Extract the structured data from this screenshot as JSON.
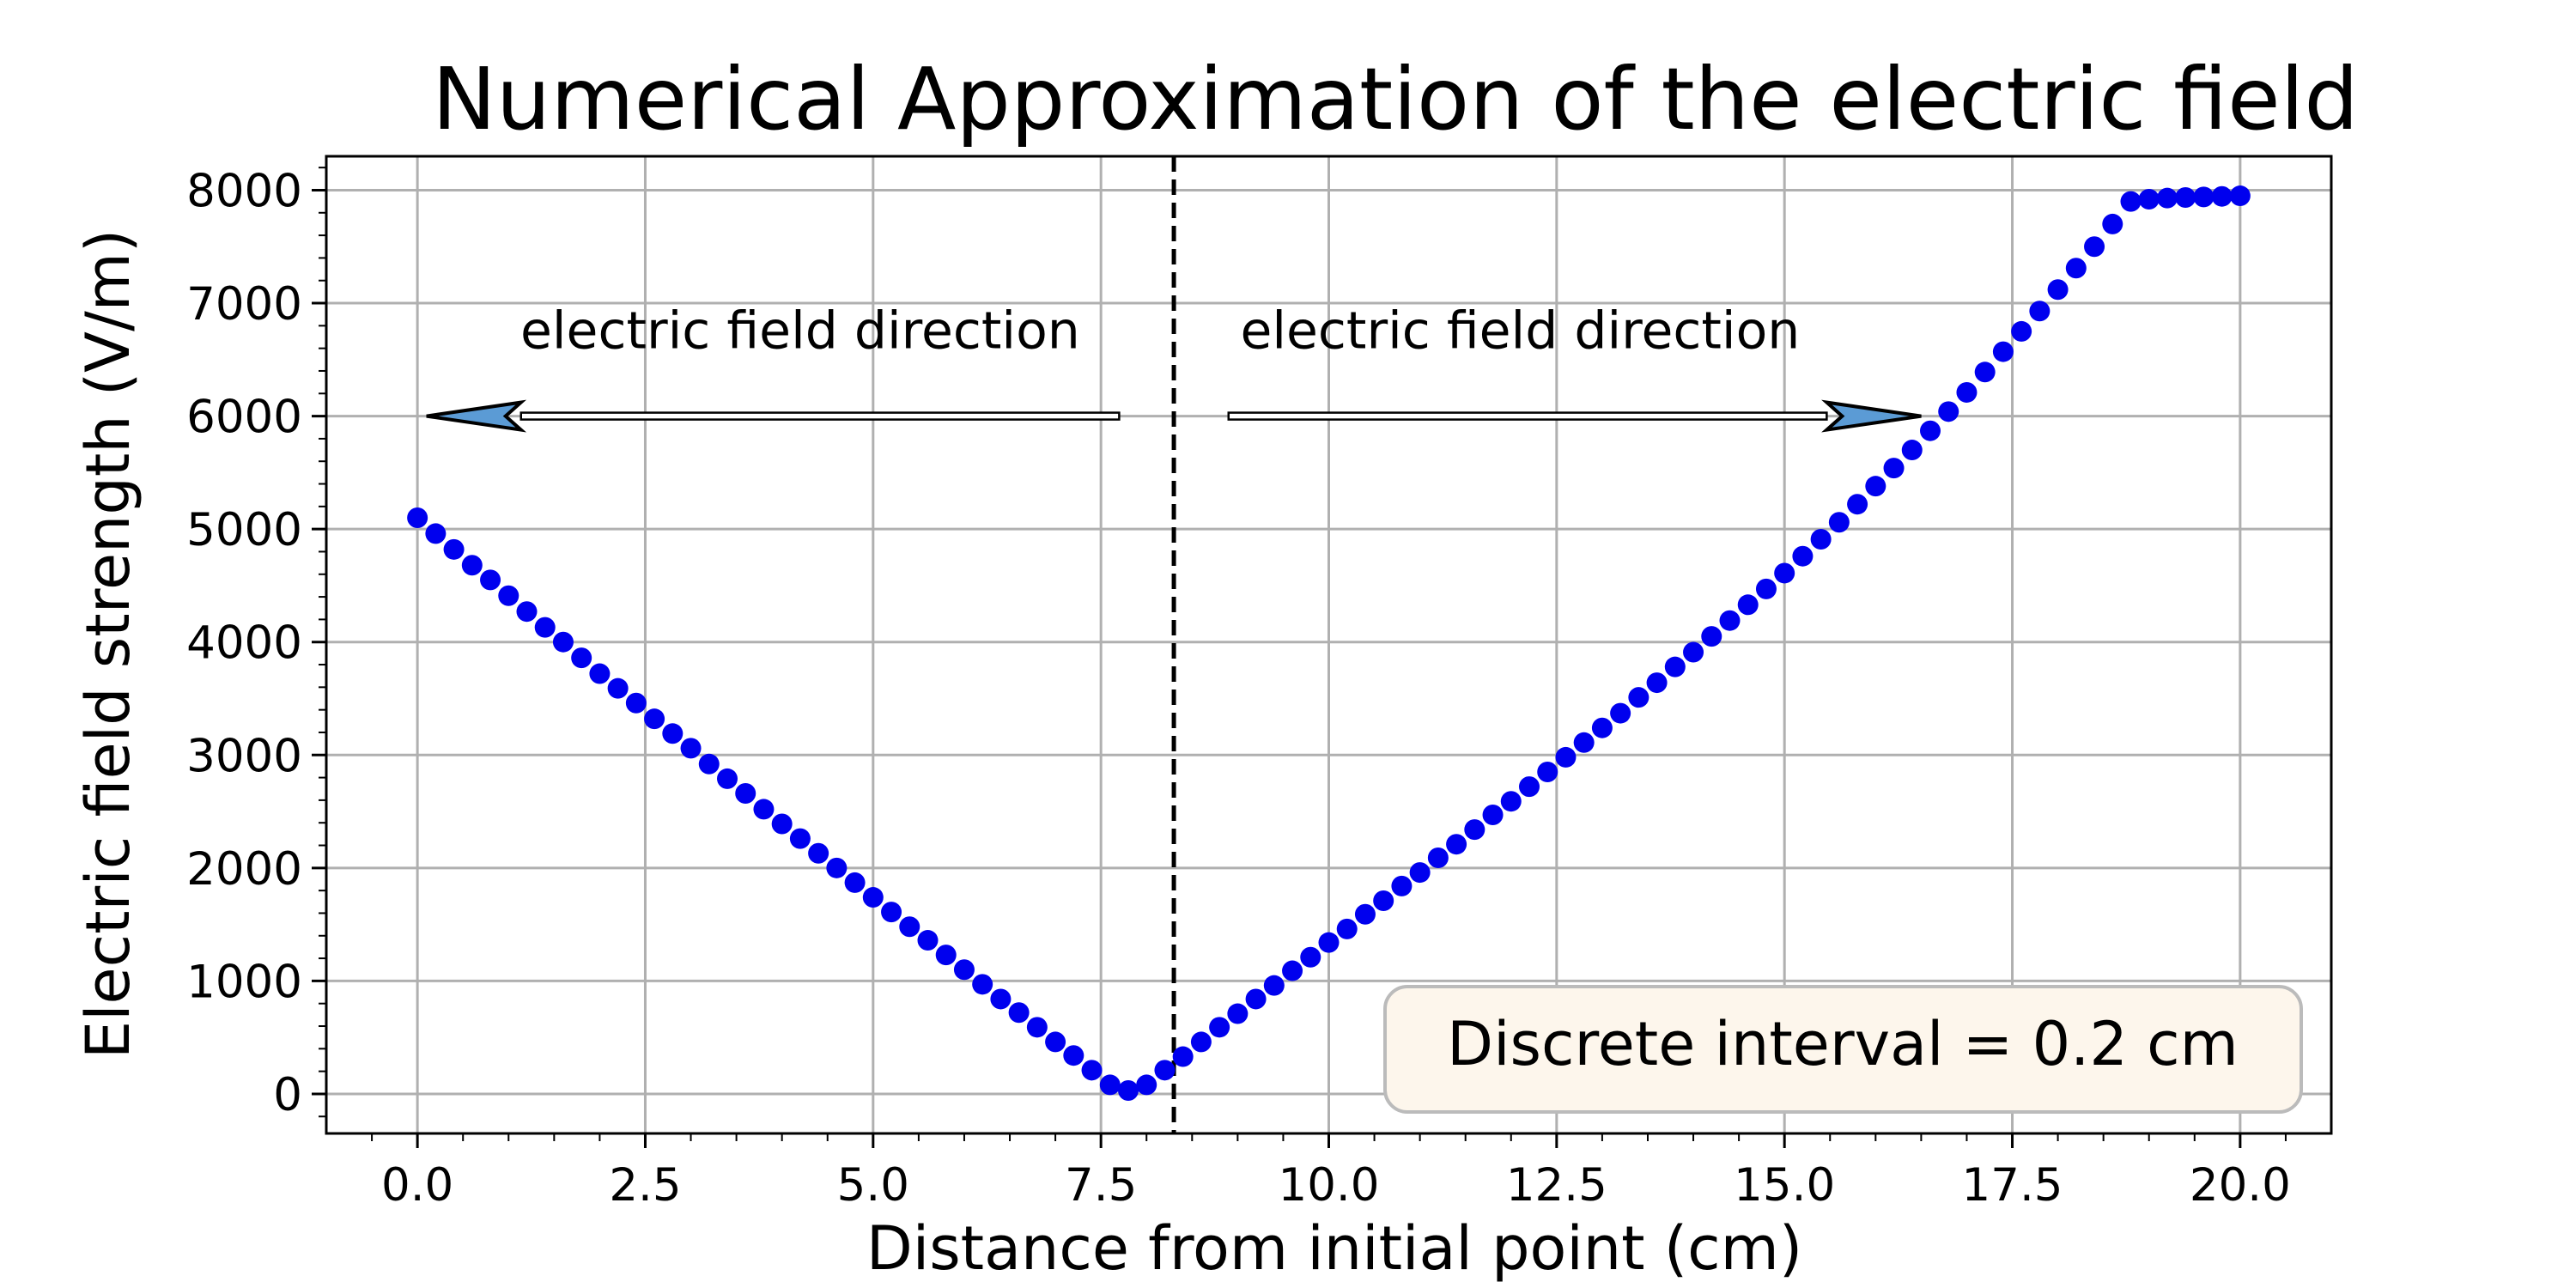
{
  "chart_data": {
    "type": "scatter",
    "title": "Numerical Approximation of the electric field",
    "xlabel": "Distance from initial point (cm)",
    "ylabel": "Electric field strength (V/m)",
    "xlim": [
      -1.0,
      21.0
    ],
    "ylim": [
      -350,
      8300
    ],
    "xticks": [
      0.0,
      2.5,
      5.0,
      7.5,
      10.0,
      12.5,
      15.0,
      17.5,
      20.0
    ],
    "xtick_labels": [
      "0.0",
      "2.5",
      "5.0",
      "7.5",
      "10.0",
      "12.5",
      "15.0",
      "17.5",
      "20.0"
    ],
    "yticks": [
      0,
      1000,
      2000,
      3000,
      4000,
      5000,
      6000,
      7000,
      8000
    ],
    "ytick_labels": [
      "0",
      "1000",
      "2000",
      "3000",
      "4000",
      "5000",
      "6000",
      "7000",
      "8000"
    ],
    "grid": true,
    "series": [
      {
        "marker": "circle",
        "color": "#0000ee",
        "x_start": 0.0,
        "x_step": 0.2,
        "x": [
          0.0,
          0.2,
          0.4,
          0.6,
          0.8,
          1.0,
          1.2,
          1.4,
          1.6,
          1.8,
          2.0,
          2.2,
          2.4,
          2.6,
          2.8,
          3.0,
          3.2,
          3.4,
          3.6,
          3.8,
          4.0,
          4.2,
          4.4,
          4.6,
          4.8,
          5.0,
          5.2,
          5.4,
          5.6,
          5.8,
          6.0,
          6.2,
          6.4,
          6.6,
          6.8,
          7.0,
          7.2,
          7.4,
          7.6,
          7.8,
          8.0,
          8.2,
          8.4,
          8.6,
          8.8,
          9.0,
          9.2,
          9.4,
          9.6,
          9.8,
          10.0,
          10.2,
          10.4,
          10.6,
          10.8,
          11.0,
          11.2,
          11.4,
          11.6,
          11.8,
          12.0,
          12.2,
          12.4,
          12.6,
          12.8,
          13.0,
          13.2,
          13.4,
          13.6,
          13.8,
          14.0,
          14.2,
          14.4,
          14.6,
          14.8,
          15.0,
          15.2,
          15.4,
          15.6,
          15.8,
          16.0,
          16.2,
          16.4,
          16.6,
          16.8,
          17.0,
          17.2,
          17.4,
          17.6,
          17.8,
          18.0,
          18.2,
          18.4,
          18.6,
          18.8,
          19.0,
          19.2,
          19.4,
          19.6,
          19.8,
          20.0
        ],
        "y": [
          5100,
          4960,
          4820,
          4680,
          4550,
          4410,
          4270,
          4130,
          4000,
          3860,
          3720,
          3590,
          3460,
          3320,
          3190,
          3060,
          2920,
          2790,
          2660,
          2520,
          2390,
          2260,
          2130,
          2000,
          1870,
          1740,
          1610,
          1480,
          1360,
          1230,
          1100,
          970,
          840,
          720,
          590,
          460,
          340,
          210,
          80,
          30,
          80,
          210,
          330,
          460,
          590,
          710,
          840,
          960,
          1090,
          1210,
          1340,
          1460,
          1590,
          1710,
          1840,
          1960,
          2090,
          2210,
          2340,
          2470,
          2590,
          2720,
          2850,
          2980,
          3110,
          3240,
          3370,
          3510,
          3640,
          3780,
          3910,
          4050,
          4190,
          4330,
          4470,
          4610,
          4760,
          4910,
          5060,
          5220,
          5380,
          5540,
          5700,
          5870,
          6040,
          6210,
          6390,
          6570,
          6750,
          6930,
          7120,
          7310,
          7500,
          7700,
          7900,
          7920,
          7930,
          7935,
          7940,
          7945,
          7950
        ]
      }
    ],
    "vline": {
      "x": 8.3,
      "style": "dashed",
      "color": "#000000"
    },
    "annotations": [
      {
        "text": "electric field direction",
        "x": 4.2,
        "y": 6600
      },
      {
        "text": "electric field direction",
        "x": 12.1,
        "y": 6600
      }
    ],
    "arrows": [
      {
        "direction": "left",
        "from_x": 7.7,
        "to_x": 0.1,
        "y": 6000
      },
      {
        "direction": "right",
        "from_x": 8.9,
        "to_x": 16.5,
        "y": 6000
      }
    ],
    "textbox": {
      "text": "Discrete interval = 0.2 cm",
      "background": "#fdf6ec",
      "border": "#bbbbbb",
      "position": "lower-right"
    }
  }
}
